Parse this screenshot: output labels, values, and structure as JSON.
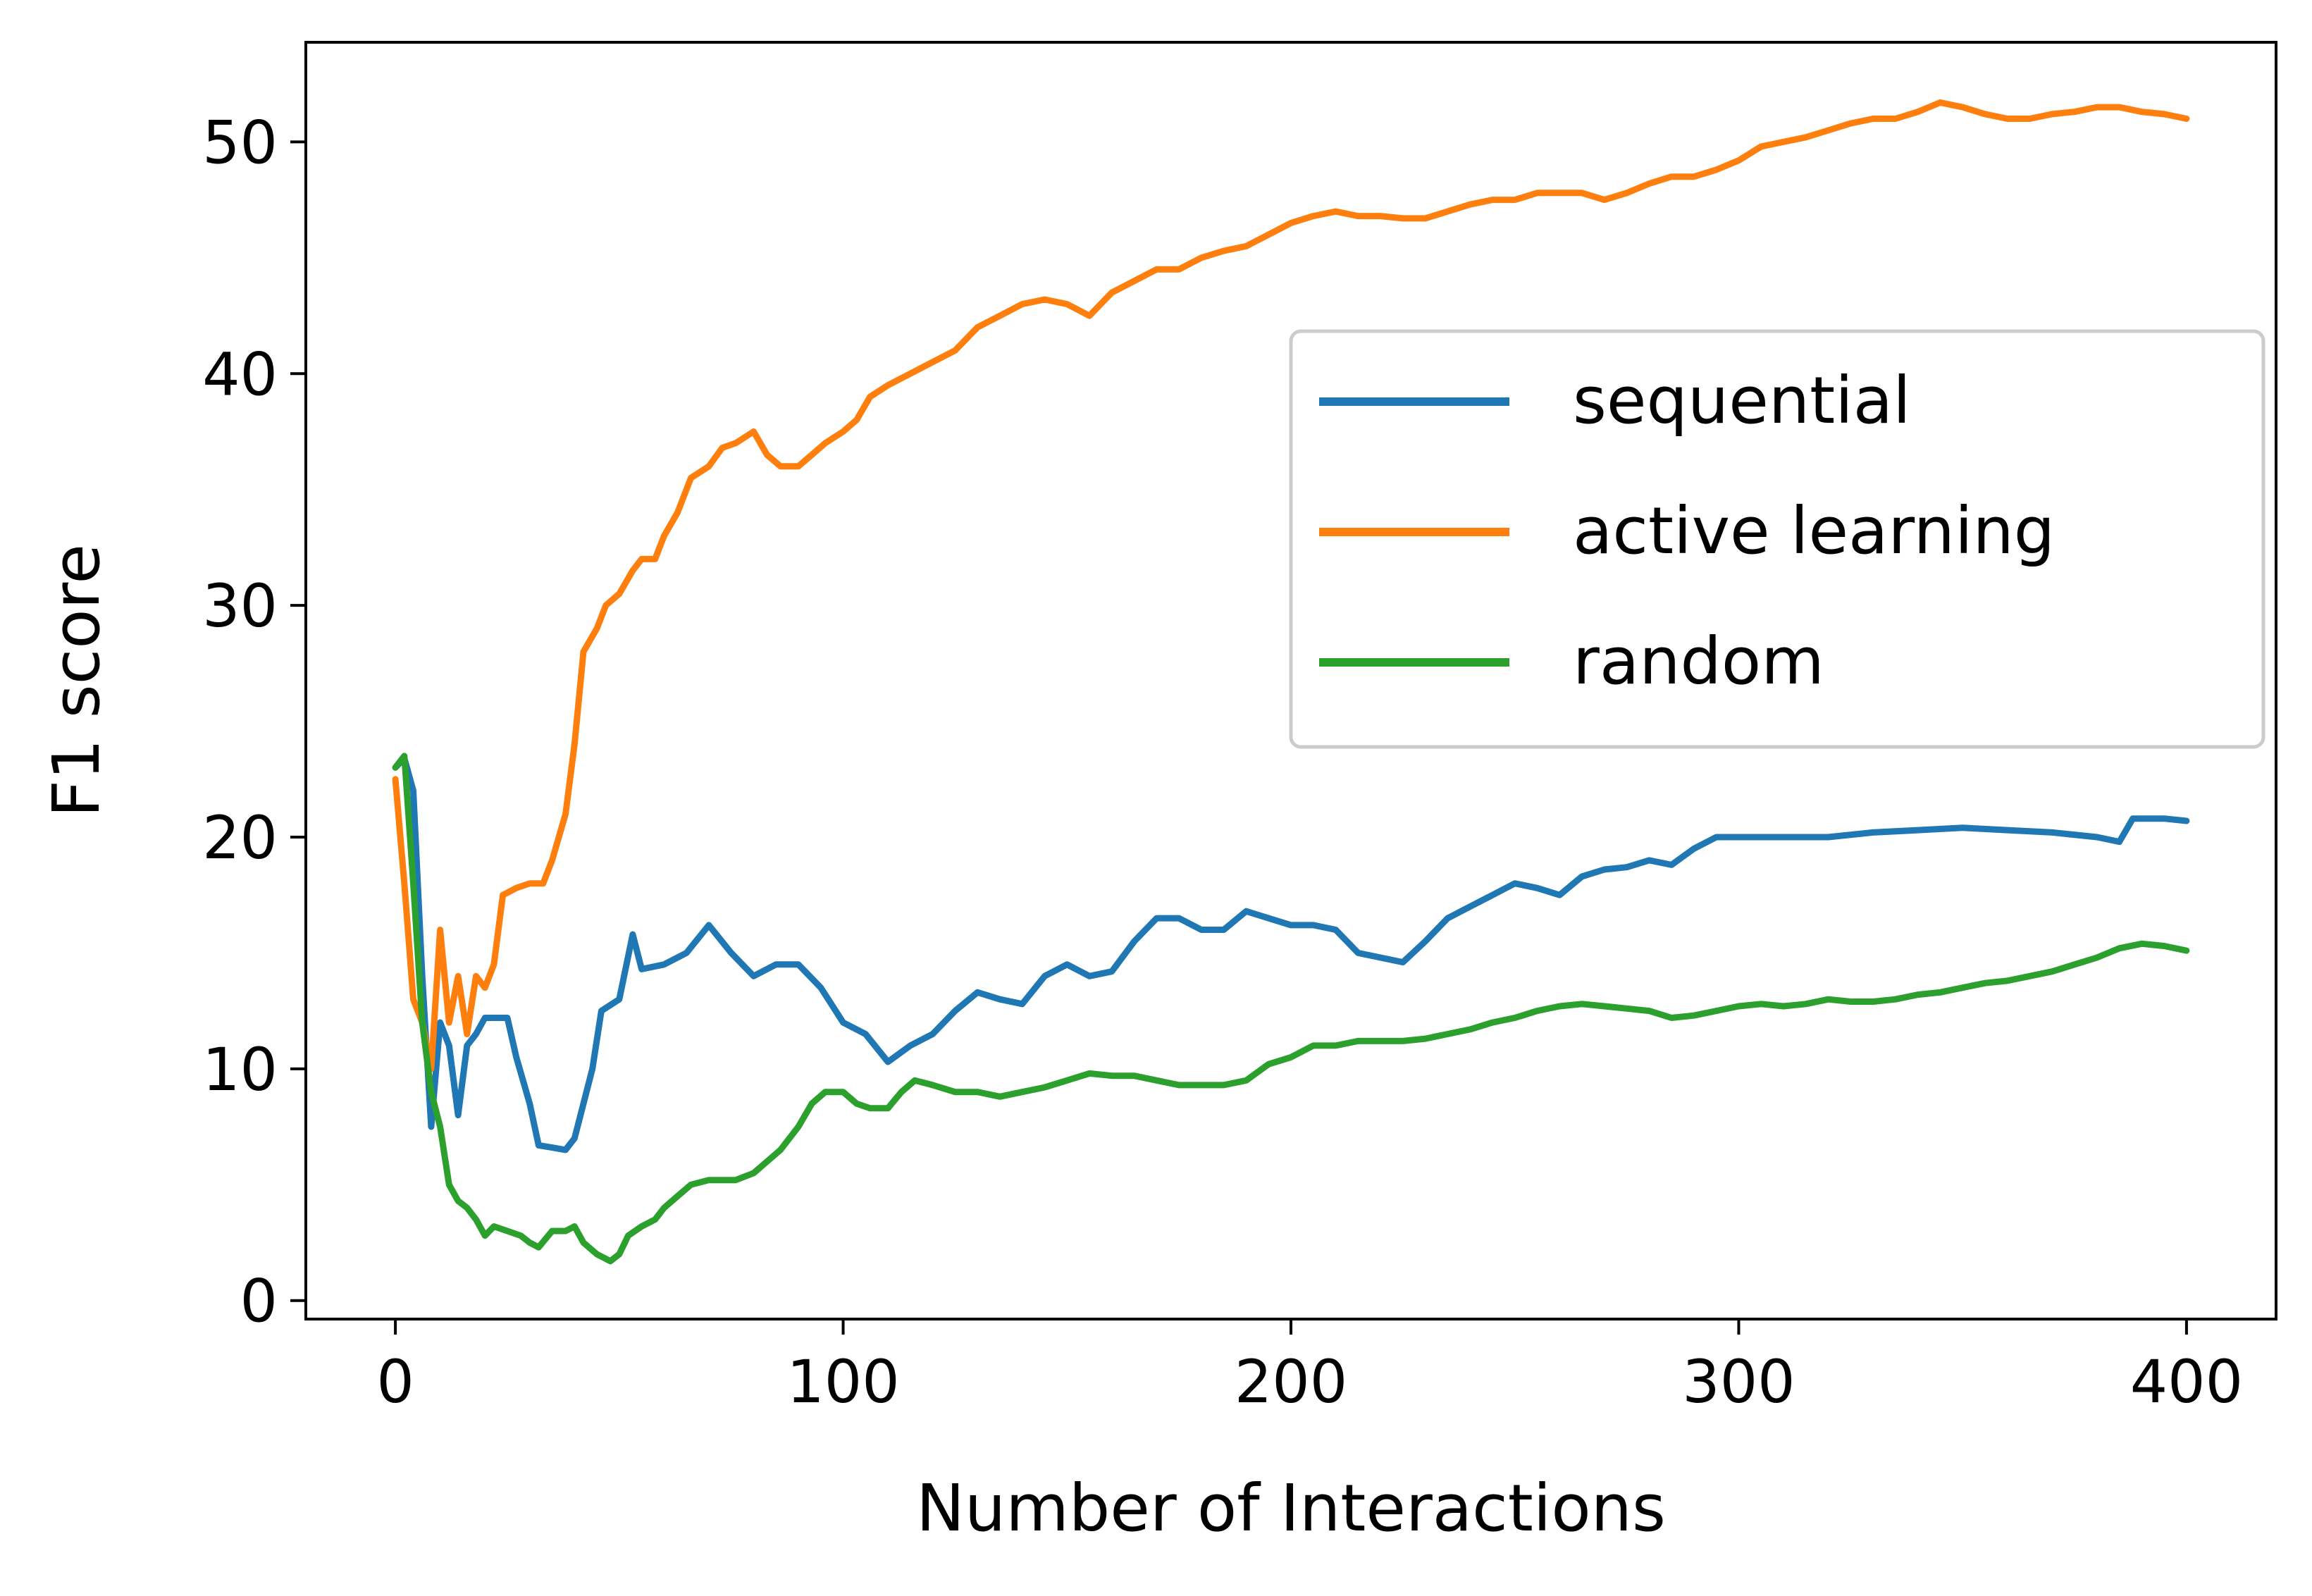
{
  "chart_data": {
    "type": "line",
    "title": "",
    "xlabel": "Number of Interactions",
    "ylabel": "F1 score",
    "xlim": [
      -20,
      420
    ],
    "ylim": [
      -0.8,
      54.3
    ],
    "xticks": [
      0,
      100,
      200,
      300,
      400
    ],
    "yticks": [
      0,
      10,
      20,
      30,
      40,
      50
    ],
    "grid": false,
    "legend_position": "center-right",
    "series": [
      {
        "name": "sequential",
        "color": "#1f77b4",
        "points": [
          [
            0,
            23
          ],
          [
            2,
            23.4
          ],
          [
            4,
            22
          ],
          [
            6,
            14
          ],
          [
            8,
            7.5
          ],
          [
            10,
            12
          ],
          [
            12,
            11
          ],
          [
            14,
            8
          ],
          [
            16,
            11
          ],
          [
            18,
            11.5
          ],
          [
            20,
            12.2
          ],
          [
            22,
            12.2
          ],
          [
            25,
            12.2
          ],
          [
            27,
            10.5
          ],
          [
            30,
            8.5
          ],
          [
            32,
            6.7
          ],
          [
            35,
            6.6
          ],
          [
            38,
            6.5
          ],
          [
            40,
            7
          ],
          [
            42,
            8.5
          ],
          [
            44,
            10
          ],
          [
            46,
            12.5
          ],
          [
            50,
            13
          ],
          [
            53,
            15.8
          ],
          [
            55,
            14.3
          ],
          [
            60,
            14.5
          ],
          [
            65,
            15
          ],
          [
            70,
            16.2
          ],
          [
            75,
            15
          ],
          [
            80,
            14
          ],
          [
            85,
            14.5
          ],
          [
            90,
            14.5
          ],
          [
            95,
            13.5
          ],
          [
            100,
            12
          ],
          [
            105,
            11.5
          ],
          [
            110,
            10.3
          ],
          [
            115,
            11
          ],
          [
            120,
            11.5
          ],
          [
            125,
            12.5
          ],
          [
            130,
            13.3
          ],
          [
            135,
            13
          ],
          [
            140,
            12.8
          ],
          [
            145,
            14
          ],
          [
            150,
            14.5
          ],
          [
            155,
            14
          ],
          [
            160,
            14.2
          ],
          [
            165,
            15.5
          ],
          [
            170,
            16.5
          ],
          [
            175,
            16.5
          ],
          [
            180,
            16
          ],
          [
            185,
            16
          ],
          [
            190,
            16.8
          ],
          [
            195,
            16.5
          ],
          [
            200,
            16.2
          ],
          [
            205,
            16.2
          ],
          [
            210,
            16
          ],
          [
            215,
            15
          ],
          [
            220,
            14.8
          ],
          [
            225,
            14.6
          ],
          [
            230,
            15.5
          ],
          [
            235,
            16.5
          ],
          [
            240,
            17
          ],
          [
            245,
            17.5
          ],
          [
            250,
            18
          ],
          [
            255,
            17.8
          ],
          [
            260,
            17.5
          ],
          [
            265,
            18.3
          ],
          [
            270,
            18.6
          ],
          [
            275,
            18.7
          ],
          [
            280,
            19
          ],
          [
            285,
            18.8
          ],
          [
            290,
            19.5
          ],
          [
            295,
            20
          ],
          [
            300,
            20
          ],
          [
            310,
            20
          ],
          [
            320,
            20
          ],
          [
            330,
            20.2
          ],
          [
            340,
            20.3
          ],
          [
            350,
            20.4
          ],
          [
            360,
            20.3
          ],
          [
            370,
            20.2
          ],
          [
            380,
            20
          ],
          [
            385,
            19.8
          ],
          [
            388,
            20.8
          ],
          [
            395,
            20.8
          ],
          [
            400,
            20.7
          ]
        ]
      },
      {
        "name": "active learning",
        "color": "#ff7f0e",
        "points": [
          [
            0,
            22.5
          ],
          [
            2,
            18
          ],
          [
            4,
            13
          ],
          [
            6,
            12
          ],
          [
            8,
            10
          ],
          [
            10,
            16
          ],
          [
            12,
            12
          ],
          [
            14,
            14
          ],
          [
            16,
            11.5
          ],
          [
            18,
            14
          ],
          [
            20,
            13.5
          ],
          [
            22,
            14.5
          ],
          [
            24,
            17.5
          ],
          [
            27,
            17.8
          ],
          [
            30,
            18
          ],
          [
            33,
            18
          ],
          [
            35,
            19
          ],
          [
            38,
            21
          ],
          [
            40,
            24
          ],
          [
            42,
            28
          ],
          [
            45,
            29
          ],
          [
            47,
            30
          ],
          [
            50,
            30.5
          ],
          [
            53,
            31.5
          ],
          [
            55,
            32
          ],
          [
            58,
            32
          ],
          [
            60,
            33
          ],
          [
            63,
            34
          ],
          [
            66,
            35.5
          ],
          [
            70,
            36
          ],
          [
            73,
            36.8
          ],
          [
            76,
            37
          ],
          [
            80,
            37.5
          ],
          [
            83,
            36.5
          ],
          [
            86,
            36
          ],
          [
            90,
            36
          ],
          [
            93,
            36.5
          ],
          [
            96,
            37
          ],
          [
            100,
            37.5
          ],
          [
            103,
            38
          ],
          [
            106,
            39
          ],
          [
            110,
            39.5
          ],
          [
            115,
            40
          ],
          [
            120,
            40.5
          ],
          [
            125,
            41
          ],
          [
            130,
            42
          ],
          [
            135,
            42.5
          ],
          [
            140,
            43
          ],
          [
            145,
            43.2
          ],
          [
            150,
            43
          ],
          [
            155,
            42.5
          ],
          [
            160,
            43.5
          ],
          [
            165,
            44
          ],
          [
            170,
            44.5
          ],
          [
            175,
            44.5
          ],
          [
            180,
            45
          ],
          [
            185,
            45.3
          ],
          [
            190,
            45.5
          ],
          [
            195,
            46
          ],
          [
            200,
            46.5
          ],
          [
            205,
            46.8
          ],
          [
            210,
            47
          ],
          [
            215,
            46.8
          ],
          [
            220,
            46.8
          ],
          [
            225,
            46.7
          ],
          [
            230,
            46.7
          ],
          [
            235,
            47
          ],
          [
            240,
            47.3
          ],
          [
            245,
            47.5
          ],
          [
            250,
            47.5
          ],
          [
            255,
            47.8
          ],
          [
            260,
            47.8
          ],
          [
            265,
            47.8
          ],
          [
            270,
            47.5
          ],
          [
            275,
            47.8
          ],
          [
            280,
            48.2
          ],
          [
            285,
            48.5
          ],
          [
            290,
            48.5
          ],
          [
            295,
            48.8
          ],
          [
            300,
            49.2
          ],
          [
            305,
            49.8
          ],
          [
            310,
            50
          ],
          [
            315,
            50.2
          ],
          [
            320,
            50.5
          ],
          [
            325,
            50.8
          ],
          [
            330,
            51
          ],
          [
            335,
            51
          ],
          [
            340,
            51.3
          ],
          [
            345,
            51.7
          ],
          [
            350,
            51.5
          ],
          [
            355,
            51.2
          ],
          [
            360,
            51
          ],
          [
            365,
            51
          ],
          [
            370,
            51.2
          ],
          [
            375,
            51.3
          ],
          [
            380,
            51.5
          ],
          [
            385,
            51.5
          ],
          [
            390,
            51.3
          ],
          [
            395,
            51.2
          ],
          [
            400,
            51
          ]
        ]
      },
      {
        "name": "random",
        "color": "#2ca02c",
        "points": [
          [
            0,
            23
          ],
          [
            2,
            23.5
          ],
          [
            4,
            18
          ],
          [
            6,
            12
          ],
          [
            8,
            9
          ],
          [
            10,
            7.5
          ],
          [
            12,
            5
          ],
          [
            14,
            4.3
          ],
          [
            16,
            4
          ],
          [
            18,
            3.5
          ],
          [
            20,
            2.8
          ],
          [
            22,
            3.2
          ],
          [
            25,
            3
          ],
          [
            28,
            2.8
          ],
          [
            30,
            2.5
          ],
          [
            32,
            2.3
          ],
          [
            35,
            3
          ],
          [
            38,
            3
          ],
          [
            40,
            3.2
          ],
          [
            42,
            2.5
          ],
          [
            45,
            2
          ],
          [
            48,
            1.7
          ],
          [
            50,
            2
          ],
          [
            52,
            2.8
          ],
          [
            55,
            3.2
          ],
          [
            58,
            3.5
          ],
          [
            60,
            4
          ],
          [
            63,
            4.5
          ],
          [
            66,
            5
          ],
          [
            70,
            5.2
          ],
          [
            73,
            5.2
          ],
          [
            76,
            5.2
          ],
          [
            80,
            5.5
          ],
          [
            83,
            6
          ],
          [
            86,
            6.5
          ],
          [
            90,
            7.5
          ],
          [
            93,
            8.5
          ],
          [
            96,
            9
          ],
          [
            100,
            9
          ],
          [
            103,
            8.5
          ],
          [
            106,
            8.3
          ],
          [
            110,
            8.3
          ],
          [
            113,
            9
          ],
          [
            116,
            9.5
          ],
          [
            120,
            9.3
          ],
          [
            125,
            9
          ],
          [
            130,
            9
          ],
          [
            135,
            8.8
          ],
          [
            140,
            9
          ],
          [
            145,
            9.2
          ],
          [
            150,
            9.5
          ],
          [
            155,
            9.8
          ],
          [
            160,
            9.7
          ],
          [
            165,
            9.7
          ],
          [
            170,
            9.5
          ],
          [
            175,
            9.3
          ],
          [
            180,
            9.3
          ],
          [
            185,
            9.3
          ],
          [
            190,
            9.5
          ],
          [
            195,
            10.2
          ],
          [
            200,
            10.5
          ],
          [
            205,
            11
          ],
          [
            210,
            11
          ],
          [
            215,
            11.2
          ],
          [
            220,
            11.2
          ],
          [
            225,
            11.2
          ],
          [
            230,
            11.3
          ],
          [
            235,
            11.5
          ],
          [
            240,
            11.7
          ],
          [
            245,
            12
          ],
          [
            250,
            12.2
          ],
          [
            255,
            12.5
          ],
          [
            260,
            12.7
          ],
          [
            265,
            12.8
          ],
          [
            270,
            12.7
          ],
          [
            275,
            12.6
          ],
          [
            280,
            12.5
          ],
          [
            285,
            12.2
          ],
          [
            290,
            12.3
          ],
          [
            295,
            12.5
          ],
          [
            300,
            12.7
          ],
          [
            305,
            12.8
          ],
          [
            310,
            12.7
          ],
          [
            315,
            12.8
          ],
          [
            320,
            13
          ],
          [
            325,
            12.9
          ],
          [
            330,
            12.9
          ],
          [
            335,
            13
          ],
          [
            340,
            13.2
          ],
          [
            345,
            13.3
          ],
          [
            350,
            13.5
          ],
          [
            355,
            13.7
          ],
          [
            360,
            13.8
          ],
          [
            365,
            14
          ],
          [
            370,
            14.2
          ],
          [
            375,
            14.5
          ],
          [
            380,
            14.8
          ],
          [
            385,
            15.2
          ],
          [
            390,
            15.4
          ],
          [
            395,
            15.3
          ],
          [
            400,
            15.1
          ]
        ]
      }
    ]
  }
}
